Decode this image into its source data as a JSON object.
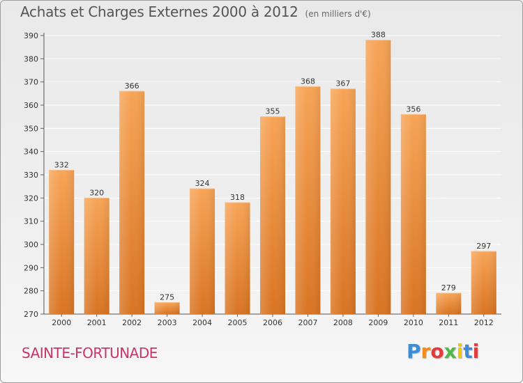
{
  "header": {
    "title": "Achats et Charges Externes 2000 à 2012",
    "unit": "(en milliers d'€)"
  },
  "footer": {
    "city": "SAINTE-FORTUNADE",
    "logo": "Proxiti"
  },
  "colors": {
    "bar_top": "#f7a456",
    "bar_bottom": "#d97422",
    "grid": "#ffffff",
    "axis_text": "#333333",
    "city": "#cc3366",
    "logo_letters": [
      "#3c8dd6",
      "#f28c1c",
      "#e33b3b",
      "#52b847",
      "#f2c40f",
      "#3c8dd6",
      "#e33b3b"
    ]
  },
  "chart_data": {
    "type": "bar",
    "categories": [
      "2000",
      "2001",
      "2002",
      "2003",
      "2004",
      "2005",
      "2006",
      "2007",
      "2008",
      "2009",
      "2010",
      "2011",
      "2012"
    ],
    "values": [
      332,
      320,
      366,
      275,
      324,
      318,
      355,
      368,
      367,
      388,
      356,
      279,
      297
    ],
    "title": "Achats et Charges Externes 2000 à 2012",
    "ylim": [
      270,
      390
    ],
    "yticks": [
      270,
      280,
      290,
      300,
      310,
      320,
      330,
      340,
      350,
      360,
      370,
      380,
      390
    ],
    "grid": true,
    "data_labels": true
  }
}
